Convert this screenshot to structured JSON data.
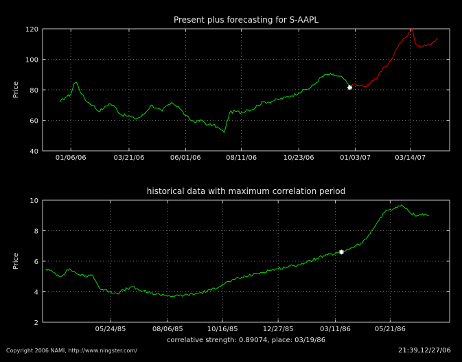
{
  "chart_data": [
    {
      "type": "line",
      "title": "Present plus forecasting for S-AAPL",
      "xlabel": "",
      "ylabel": "Price",
      "ylim": [
        40,
        120
      ],
      "yticks": [
        40,
        60,
        80,
        100,
        120
      ],
      "xticks": [
        "01/06/06",
        "03/21/06",
        "06/01/06",
        "08/11/06",
        "10/23/06",
        "01/03/07",
        "03/14/07"
      ],
      "grid": true,
      "marker": {
        "date": "12/27/06",
        "value": 81.5
      },
      "series": [
        {
          "kind": "historical",
          "color": "#00e000",
          "points": [
            [
              "12/23/05",
              72
            ],
            [
              "12/30/05",
              75
            ],
            [
              "01/06/06",
              77
            ],
            [
              "01/10/06",
              84
            ],
            [
              "01/13/06",
              85
            ],
            [
              "01/20/06",
              77
            ],
            [
              "01/27/06",
              72
            ],
            [
              "02/03/06",
              70
            ],
            [
              "02/10/06",
              66
            ],
            [
              "02/17/06",
              68
            ],
            [
              "02/24/06",
              71
            ],
            [
              "03/03/06",
              69
            ],
            [
              "03/10/06",
              64
            ],
            [
              "03/17/06",
              63
            ],
            [
              "03/21/06",
              63
            ],
            [
              "03/28/06",
              61
            ],
            [
              "04/04/06",
              62
            ],
            [
              "04/11/06",
              65
            ],
            [
              "04/18/06",
              70
            ],
            [
              "04/25/06",
              68
            ],
            [
              "05/02/06",
              66
            ],
            [
              "05/09/06",
              70
            ],
            [
              "05/16/06",
              71
            ],
            [
              "05/23/06",
              69
            ],
            [
              "06/01/06",
              63
            ],
            [
              "06/08/06",
              60
            ],
            [
              "06/15/06",
              59
            ],
            [
              "06/22/06",
              60
            ],
            [
              "06/29/06",
              57
            ],
            [
              "07/06/06",
              57
            ],
            [
              "07/13/06",
              55
            ],
            [
              "07/20/06",
              52
            ],
            [
              "07/27/06",
              65
            ],
            [
              "08/03/06",
              66
            ],
            [
              "08/11/06",
              65
            ],
            [
              "08/18/06",
              67
            ],
            [
              "08/25/06",
              67
            ],
            [
              "09/01/06",
              70
            ],
            [
              "09/08/06",
              72
            ],
            [
              "09/15/06",
              72
            ],
            [
              "09/22/06",
              73
            ],
            [
              "09/29/06",
              74
            ],
            [
              "10/06/06",
              75
            ],
            [
              "10/13/06",
              76
            ],
            [
              "10/23/06",
              78
            ],
            [
              "10/30/06",
              80
            ],
            [
              "11/06/06",
              81
            ],
            [
              "11/13/06",
              84
            ],
            [
              "11/20/06",
              88
            ],
            [
              "11/27/06",
              90
            ],
            [
              "12/04/06",
              90
            ],
            [
              "12/11/06",
              89
            ],
            [
              "12/18/06",
              88
            ],
            [
              "12/27/06",
              82
            ]
          ]
        },
        {
          "kind": "forecast",
          "color": "#e00000",
          "points": [
            [
              "12/27/06",
              82
            ],
            [
              "01/03/07",
              84
            ],
            [
              "01/10/07",
              83
            ],
            [
              "01/17/07",
              82
            ],
            [
              "01/24/07",
              86
            ],
            [
              "01/31/07",
              88
            ],
            [
              "02/07/07",
              94
            ],
            [
              "02/14/07",
              97
            ],
            [
              "02/21/07",
              103
            ],
            [
              "02/28/07",
              110
            ],
            [
              "03/07/07",
              114
            ],
            [
              "03/14/07",
              118
            ],
            [
              "03/16/07",
              120
            ],
            [
              "03/21/07",
              110
            ],
            [
              "03/28/07",
              108
            ],
            [
              "04/04/07",
              109
            ],
            [
              "04/11/07",
              111
            ],
            [
              "04/18/07",
              114
            ]
          ]
        }
      ]
    },
    {
      "type": "line",
      "title": "historical data with maximum correlation period",
      "xlabel": "correlative strength: 0.89074, place: 03/19/86",
      "ylabel": "Price",
      "ylim": [
        2,
        10
      ],
      "yticks": [
        2,
        4,
        6,
        8,
        10
      ],
      "xticks": [
        "05/24/85",
        "08/06/85",
        "10/16/85",
        "12/27/85",
        "03/11/86",
        "05/21/86"
      ],
      "grid": true,
      "marker": {
        "date": "03/19/86",
        "value": 6.6
      },
      "series": [
        {
          "kind": "historical",
          "color": "#00e000",
          "points": [
            [
              "03/01/85",
              5.5
            ],
            [
              "03/10/85",
              5.3
            ],
            [
              "03/20/85",
              5.0
            ],
            [
              "04/01/85",
              5.5
            ],
            [
              "04/10/85",
              5.2
            ],
            [
              "04/20/85",
              5.0
            ],
            [
              "05/01/85",
              5.1
            ],
            [
              "05/10/85",
              4.2
            ],
            [
              "05/24/85",
              4.0
            ],
            [
              "06/01/85",
              3.9
            ],
            [
              "06/10/85",
              4.1
            ],
            [
              "06/20/85",
              4.3
            ],
            [
              "07/01/85",
              4.1
            ],
            [
              "07/15/85",
              3.9
            ],
            [
              "08/01/85",
              3.8
            ],
            [
              "08/15/85",
              3.7
            ],
            [
              "09/01/85",
              3.8
            ],
            [
              "09/15/85",
              3.9
            ],
            [
              "10/01/85",
              4.1
            ],
            [
              "10/16/85",
              4.5
            ],
            [
              "11/01/85",
              4.8
            ],
            [
              "11/15/85",
              5.0
            ],
            [
              "12/01/85",
              5.2
            ],
            [
              "12/15/85",
              5.4
            ],
            [
              "12/27/85",
              5.5
            ],
            [
              "01/15/86",
              5.7
            ],
            [
              "02/01/86",
              5.9
            ],
            [
              "02/15/86",
              6.2
            ],
            [
              "03/01/86",
              6.4
            ],
            [
              "03/11/86",
              6.5
            ],
            [
              "03/19/86",
              6.6
            ],
            [
              "04/01/86",
              6.9
            ],
            [
              "04/15/86",
              7.2
            ],
            [
              "04/25/86",
              7.8
            ],
            [
              "05/05/86",
              8.6
            ],
            [
              "05/15/86",
              9.3
            ],
            [
              "05/21/86",
              9.4
            ],
            [
              "05/30/86",
              9.5
            ],
            [
              "06/05/86",
              9.7
            ],
            [
              "06/15/86",
              9.2
            ],
            [
              "06/25/86",
              9.0
            ],
            [
              "07/05/86",
              9.1
            ],
            [
              "07/10/86",
              9.0
            ]
          ]
        }
      ]
    }
  ],
  "footer": {
    "copyright": "Copyright 2006 NAMI, http://www.ningster.com/",
    "timestamp": "21:39,12/27/06"
  }
}
